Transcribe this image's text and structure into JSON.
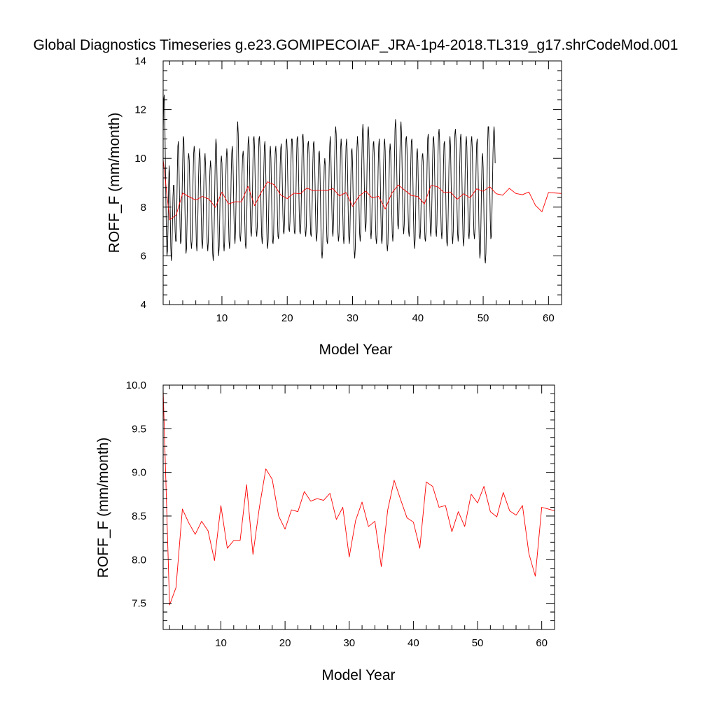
{
  "title": "Global Diagnostics Timeseries g.e23.GOMIPECOIAF_JRA-1p4-2018.TL319_g17.shrCodeMod.001",
  "colors": {
    "monthly": "#000000",
    "annual": "#ff0000",
    "frame": "#000000"
  },
  "chart_data": [
    {
      "type": "line",
      "xlabel": "Model Year",
      "ylabel": "ROFF_F (mm/month)",
      "xlim": [
        1,
        62
      ],
      "ylim": [
        4,
        14
      ],
      "xticks": [
        10,
        20,
        30,
        40,
        50,
        60
      ],
      "xtick_labels": [
        "10",
        "20",
        "30",
        "40",
        "50",
        "60"
      ],
      "yticks": [
        4,
        6,
        8,
        10,
        12,
        14
      ],
      "ytick_labels": [
        "4",
        "6",
        "8",
        "10",
        "12",
        "14"
      ],
      "grid": false,
      "series": [
        {
          "name": "monthly",
          "color": "#000000",
          "x_start": 1.0,
          "x_step": 0.0833333,
          "values": [
            11.0,
            12.4,
            12.6,
            11.8,
            10.0,
            8.3,
            6.9,
            6.0,
            6.2,
            7.2,
            8.9,
            9.7,
            9.3,
            7.8,
            6.4,
            5.8,
            6.1,
            7.2,
            8.4,
            8.9,
            8.9,
            8.0,
            7.0,
            6.6,
            6.6,
            7.8,
            9.4,
            10.5,
            10.7,
            9.8,
            8.5,
            7.2,
            6.5,
            6.6,
            7.5,
            8.8,
            10.0,
            10.9,
            10.8,
            9.6,
            8.0,
            6.7,
            6.1,
            6.3,
            7.4,
            8.9,
            10.0,
            10.2,
            9.9,
            8.8,
            7.6,
            6.6,
            6.3,
            6.6,
            7.8,
            9.2,
            10.2,
            10.5,
            10.2,
            9.1,
            7.6,
            6.5,
            6.2,
            6.7,
            7.9,
            9.2,
            10.0,
            10.4,
            10.0,
            8.9,
            7.6,
            6.6,
            6.3,
            6.7,
            8.0,
            9.3,
            9.9,
            10.2,
            9.7,
            8.6,
            7.3,
            6.5,
            6.2,
            6.6,
            7.6,
            8.8,
            9.5,
            9.9,
            9.6,
            8.4,
            7.1,
            6.1,
            5.8,
            6.2,
            7.5,
            9.0,
            10.3,
            10.8,
            10.5,
            9.2,
            7.7,
            6.4,
            6.0,
            6.4,
            7.6,
            9.0,
            9.8,
            10.1,
            9.8,
            8.7,
            7.4,
            6.5,
            6.2,
            6.6,
            7.8,
            9.1,
            10.0,
            10.4,
            10.1,
            9.0,
            7.6,
            6.6,
            6.3,
            6.7,
            7.9,
            9.3,
            10.2,
            10.5,
            10.2,
            9.1,
            7.7,
            6.8,
            6.5,
            7.0,
            8.3,
            9.8,
            11.0,
            11.5,
            11.0,
            9.6,
            8.0,
            6.8,
            6.6,
            7.0,
            8.2,
            9.4,
            10.1,
            10.3,
            10.0,
            8.8,
            7.4,
            6.5,
            6.3,
            6.8,
            8.1,
            9.6,
            10.6,
            10.9,
            10.5,
            9.3,
            7.9,
            7.0,
            6.8,
            7.2,
            8.4,
            9.9,
            10.8,
            10.9,
            10.4,
            9.2,
            7.9,
            7.0,
            6.8,
            7.2,
            8.4,
            9.8,
            10.8,
            10.9,
            10.4,
            9.1,
            7.7,
            6.8,
            6.5,
            6.9,
            8.1,
            9.6,
            10.5,
            10.7,
            10.2,
            8.9,
            7.4,
            6.5,
            6.3,
            6.7,
            7.9,
            9.3,
            10.2,
            10.5,
            10.0,
            8.8,
            7.4,
            6.6,
            6.5,
            6.9,
            8.1,
            9.5,
            10.3,
            10.5,
            10.0,
            8.8,
            7.6,
            6.8,
            6.7,
            7.1,
            8.3,
            9.7,
            10.4,
            10.6,
            10.1,
            8.9,
            7.7,
            7.0,
            6.9,
            7.3,
            8.5,
            9.9,
            10.7,
            10.8,
            10.3,
            9.1,
            7.9,
            7.1,
            7.0,
            7.4,
            8.6,
            10.0,
            10.8,
            10.8,
            10.3,
            9.1,
            7.8,
            7.0,
            6.9,
            7.3,
            8.5,
            9.9,
            10.8,
            10.9,
            10.4,
            9.1,
            7.8,
            7.0,
            6.9,
            7.3,
            8.5,
            10.0,
            10.9,
            11.0,
            10.5,
            9.2,
            7.9,
            7.0,
            6.8,
            7.2,
            8.4,
            9.8,
            10.6,
            10.7,
            10.2,
            9.0,
            7.7,
            6.9,
            6.8,
            7.2,
            8.4,
            9.8,
            10.6,
            10.7,
            10.3,
            9.1,
            7.7,
            6.8,
            6.6,
            7.0,
            8.2,
            9.5,
            10.2,
            10.3,
            9.7,
            8.4,
            7.0,
            6.2,
            5.9,
            6.2,
            7.3,
            8.7,
            9.7,
            10.0,
            9.7,
            8.6,
            7.4,
            6.6,
            6.5,
            6.9,
            8.1,
            9.6,
            10.5,
            10.9,
            10.4,
            9.2,
            7.9,
            7.0,
            6.8,
            7.3,
            8.5,
            9.9,
            10.9,
            11.3,
            11.0,
            9.8,
            8.2,
            7.0,
            6.6,
            6.8,
            7.9,
            9.3,
            10.4,
            10.8,
            10.4,
            9.2,
            7.8,
            6.8,
            6.5,
            6.9,
            8.1,
            9.6,
            10.5,
            10.8,
            10.4,
            9.2,
            7.8,
            6.8,
            6.5,
            6.8,
            8.0,
            9.4,
            10.3,
            10.4,
            9.8,
            8.5,
            7.1,
            6.2,
            5.9,
            6.3,
            7.5,
            9.1,
            10.4,
            10.9,
            10.5,
            9.3,
            7.9,
            6.9,
            6.6,
            7.0,
            8.3,
            9.9,
            11.0,
            11.4,
            11.0,
            9.8,
            8.4,
            7.3,
            7.0,
            7.4,
            8.7,
            10.2,
            11.1,
            11.3,
            10.8,
            9.5,
            8.0,
            7.0,
            6.7,
            7.1,
            8.3,
            9.7,
            10.6,
            10.7,
            10.1,
            8.9,
            7.5,
            6.7,
            6.5,
            6.9,
            8.1,
            9.6,
            10.5,
            10.8,
            10.3,
            9.1,
            7.7,
            6.7,
            6.5,
            6.9,
            8.2,
            9.7,
            10.6,
            10.8,
            10.3,
            9.0,
            7.5,
            6.5,
            6.2,
            6.5,
            7.6,
            9.1,
            10.2,
            10.6,
            10.3,
            9.2,
            7.8,
            6.9,
            6.6,
            7.1,
            8.4,
            10.0,
            11.2,
            11.6,
            11.2,
            9.9,
            8.4,
            7.3,
            7.1,
            7.5,
            8.8,
            10.2,
            11.2,
            11.5,
            11.0,
            9.7,
            8.2,
            7.2,
            6.9,
            7.3,
            8.5,
            9.9,
            10.8,
            10.9,
            10.4,
            9.2,
            7.8,
            7.0,
            6.8,
            7.2,
            8.4,
            9.8,
            10.7,
            10.8,
            10.3,
            9.0,
            7.5,
            6.6,
            6.3,
            6.7,
            7.9,
            9.3,
            10.2,
            10.4,
            9.9,
            8.7,
            7.5,
            6.8,
            6.7,
            7.1,
            8.2,
            9.4,
            10.1,
            10.2,
            9.8,
            8.7,
            7.5,
            6.7,
            6.6,
            7.0,
            8.3,
            9.8,
            10.8,
            11.0,
            10.6,
            9.3,
            7.9,
            7.0,
            6.8,
            7.3,
            8.5,
            9.9,
            10.8,
            10.9,
            10.4,
            9.2,
            7.8,
            7.0,
            6.8,
            7.3,
            8.6,
            10.1,
            11.0,
            11.2,
            10.7,
            9.4,
            7.9,
            7.0,
            6.7,
            7.1,
            8.3,
            9.7,
            10.6,
            10.7,
            10.2,
            8.9,
            7.5,
            6.6,
            6.4,
            6.8,
            8.1,
            9.6,
            10.6,
            10.9,
            10.5,
            9.2,
            7.8,
            6.8,
            6.5,
            7.0,
            8.3,
            9.9,
            11.0,
            11.2,
            10.8,
            9.4,
            7.9,
            6.9,
            6.6,
            7.0,
            8.3,
            9.8,
            10.8,
            11.0,
            10.5,
            9.2,
            7.7,
            6.7,
            6.4,
            6.8,
            8.1,
            9.6,
            10.6,
            10.9,
            10.5,
            9.3,
            7.9,
            6.9,
            6.7,
            7.1,
            8.4,
            9.8,
            10.7,
            10.9,
            10.4,
            9.2,
            7.8,
            6.9,
            6.7,
            7.1,
            8.3,
            9.7,
            10.6,
            10.8,
            10.3,
            9.0,
            7.4,
            6.3,
            5.9,
            6.2,
            7.5,
            9.0,
            10.0,
            10.2,
            9.6,
            8.3,
            6.8,
            5.9,
            5.7,
            6.1,
            7.4,
            9.0,
            10.4,
            11.3,
            11.3,
            10.4,
            8.9,
            7.5,
            6.7,
            6.8,
            7.6,
            8.9,
            10.2,
            11.0,
            11.3,
            10.9,
            9.8
          ]
        },
        {
          "name": "annual",
          "color": "#ff0000",
          "x": [
            1,
            2,
            3,
            4,
            5,
            6,
            7,
            8,
            9,
            10,
            11,
            12,
            13,
            14,
            15,
            16,
            17,
            18,
            19,
            20,
            21,
            22,
            23,
            24,
            25,
            26,
            27,
            28,
            29,
            30,
            31,
            32,
            33,
            34,
            35,
            36,
            37,
            38,
            39,
            40,
            41,
            42,
            43,
            44,
            45,
            46,
            47,
            48,
            49,
            50,
            51,
            52,
            53,
            54,
            55,
            56,
            57,
            58,
            59,
            60,
            61,
            62
          ],
          "values": [
            9.95,
            7.48,
            7.68,
            8.58,
            8.42,
            8.29,
            8.44,
            8.33,
            7.99,
            8.62,
            8.13,
            8.22,
            8.22,
            8.86,
            8.06,
            8.6,
            9.04,
            8.92,
            8.5,
            8.35,
            8.57,
            8.55,
            8.78,
            8.67,
            8.7,
            8.68,
            8.76,
            8.46,
            8.6,
            8.03,
            8.45,
            8.66,
            8.38,
            8.44,
            7.92,
            8.57,
            8.91,
            8.69,
            8.48,
            8.43,
            8.13,
            8.89,
            8.84,
            8.6,
            8.62,
            8.32,
            8.55,
            8.38,
            8.75,
            8.65,
            8.84,
            8.55,
            8.49,
            8.77,
            8.56,
            8.51,
            8.62,
            8.07,
            7.81,
            8.6,
            8.58,
            8.56
          ]
        }
      ]
    },
    {
      "type": "line",
      "xlabel": "Model Year",
      "ylabel": "ROFF_F (mm/month)",
      "xlim": [
        1,
        62
      ],
      "ylim": [
        7.2,
        10.0
      ],
      "xticks": [
        10,
        20,
        30,
        40,
        50,
        60
      ],
      "xtick_labels": [
        "10",
        "20",
        "30",
        "40",
        "50",
        "60"
      ],
      "yticks": [
        7.5,
        8.0,
        8.5,
        9.0,
        9.5,
        10.0
      ],
      "ytick_labels": [
        "7.5",
        "8.0",
        "8.5",
        "9.0",
        "9.5",
        "10.0"
      ],
      "grid": false,
      "series": [
        {
          "name": "annual",
          "color": "#ff0000",
          "x": [
            1,
            2,
            3,
            4,
            5,
            6,
            7,
            8,
            9,
            10,
            11,
            12,
            13,
            14,
            15,
            16,
            17,
            18,
            19,
            20,
            21,
            22,
            23,
            24,
            25,
            26,
            27,
            28,
            29,
            30,
            31,
            32,
            33,
            34,
            35,
            36,
            37,
            38,
            39,
            40,
            41,
            42,
            43,
            44,
            45,
            46,
            47,
            48,
            49,
            50,
            51,
            52,
            53,
            54,
            55,
            56,
            57,
            58,
            59,
            60,
            61,
            62
          ],
          "values": [
            9.95,
            7.48,
            7.68,
            8.58,
            8.42,
            8.29,
            8.44,
            8.33,
            7.99,
            8.62,
            8.13,
            8.22,
            8.22,
            8.86,
            8.06,
            8.6,
            9.04,
            8.92,
            8.5,
            8.35,
            8.57,
            8.55,
            8.78,
            8.67,
            8.7,
            8.68,
            8.76,
            8.46,
            8.6,
            8.03,
            8.45,
            8.66,
            8.38,
            8.44,
            7.92,
            8.57,
            8.91,
            8.69,
            8.48,
            8.43,
            8.13,
            8.89,
            8.84,
            8.6,
            8.62,
            8.32,
            8.55,
            8.38,
            8.75,
            8.65,
            8.84,
            8.55,
            8.49,
            8.77,
            8.56,
            8.51,
            8.62,
            8.07,
            7.81,
            8.6,
            8.58,
            8.56
          ]
        }
      ]
    }
  ]
}
